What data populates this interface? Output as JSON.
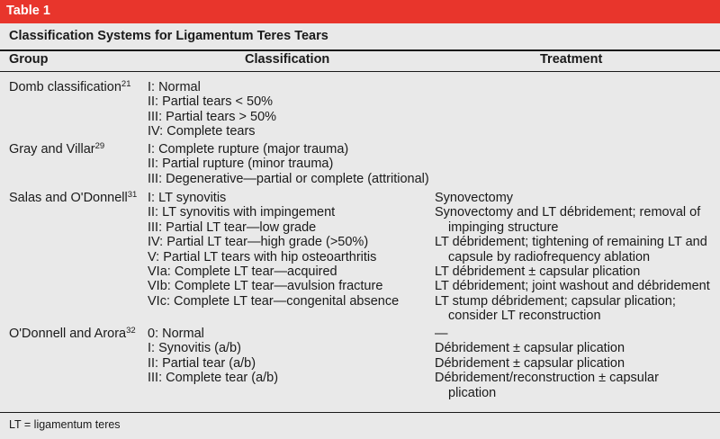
{
  "table": {
    "label": "Table 1",
    "title": "Classification Systems for Ligamentum Teres Tears",
    "headers": {
      "group": "Group",
      "classification": "Classification",
      "treatment": "Treatment"
    },
    "rows": [
      {
        "group": "Domb classification",
        "ref": "21",
        "classification": [
          "I: Normal",
          "II: Partial tears < 50%",
          "III: Partial tears > 50%",
          "IV: Complete tears"
        ],
        "treatment": []
      },
      {
        "group": "Gray and Villar",
        "ref": "29",
        "classification": [
          "I: Complete rupture (major trauma)",
          "II: Partial rupture (minor trauma)",
          "III: Degenerative—partial or complete (attritional)"
        ],
        "treatment": []
      },
      {
        "group": "Salas and O'Donnell",
        "ref": "31",
        "classification": [
          "I: LT synovitis",
          "II: LT synovitis with impingement",
          "III: Partial LT tear—low grade",
          "IV: Partial LT tear—high grade (>50%)",
          "V: Partial LT tears with hip osteoarthritis",
          "VIa: Complete LT tear—acquired",
          "VIb: Complete LT tear—avulsion fracture",
          "VIc: Complete LT tear—congenital absence"
        ],
        "treatment": [
          "Synovectomy",
          "Synovectomy and LT débridement; removal of",
          "impinging structure",
          "LT débridement; tightening of remaining LT and",
          "capsule by radiofrequency ablation",
          "LT débridement ± capsular plication",
          "LT débridement; joint washout and débridement",
          "LT stump débridement; capsular plication;",
          "consider LT reconstruction"
        ]
      },
      {
        "group": "O'Donnell and Arora",
        "ref": "32",
        "classification": [
          "0: Normal",
          "I: Synovitis (a/b)",
          "II: Partial tear (a/b)",
          "III: Complete tear (a/b)"
        ],
        "treatment": [
          "—",
          "Débridement ± capsular plication",
          "Débridement ± capsular plication",
          "Débridement/reconstruction ± capsular",
          "plication"
        ]
      }
    ],
    "footnote": "LT = ligamentum teres"
  },
  "colors": {
    "banner": "#e8352c",
    "background": "#e9e9e9",
    "text": "#1a1a1a"
  }
}
